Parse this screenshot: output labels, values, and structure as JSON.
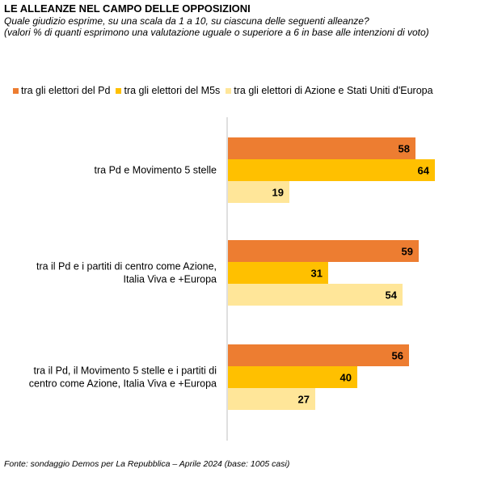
{
  "page": {
    "title": "LE ALLEANZE NEL CAMPO DELLE OPPOSIZIONI",
    "subtitle_line1": "Quale giudizio esprime, su una scala da 1 a 10, su ciascuna delle seguenti alleanze?",
    "subtitle_line2": "(valori % di quanti esprimono una valutazione uguale o superiore a 6 in base alle intenzioni di voto)",
    "source": "Fonte: sondaggio Demos per La Repubblica – Aprile 2024 (base: 1005 casi)"
  },
  "chart_data": {
    "type": "bar",
    "orientation": "horizontal",
    "title": "LE ALLEANZE NEL CAMPO DELLE OPPOSIZIONI",
    "categories": [
      [
        "tra Pd e Movimento 5 stelle"
      ],
      [
        "tra il Pd e i partiti di centro come Azione,",
        "Italia Viva e +Europa"
      ],
      [
        "tra il Pd, il Movimento 5 stelle e i partiti di",
        "centro come Azione, Italia Viva e +Europa"
      ]
    ],
    "series": [
      {
        "name": "tra gli elettori del Pd",
        "color": "#ED7D31",
        "values": [
          58,
          59,
          56
        ]
      },
      {
        "name": "tra gli elettori del M5s",
        "color": "#FFC000",
        "values": [
          64,
          31,
          40
        ]
      },
      {
        "name": "tra gli elettori di Azione e Stati Uniti d'Europa",
        "color": "#FFE699",
        "values": [
          19,
          54,
          27
        ]
      }
    ],
    "xlim": [
      0,
      100
    ],
    "grid": false,
    "legend": "top",
    "data_labels": true
  }
}
